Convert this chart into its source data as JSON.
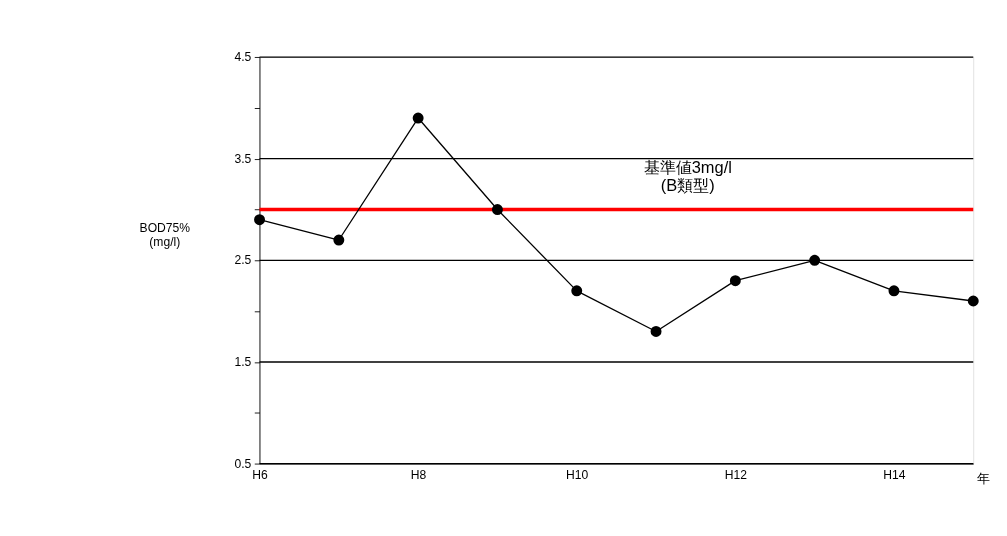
{
  "chart_data": {
    "type": "line",
    "categories": [
      "H6",
      null,
      "H8",
      null,
      "H10",
      null,
      "H12",
      null,
      "H14",
      null
    ],
    "series": [
      {
        "color": "#000000",
        "values": [
          2.9,
          2.7,
          3.9,
          3.0,
          2.2,
          1.8,
          2.3,
          2.5,
          2.2,
          2.1
        ]
      }
    ],
    "ylabel": "BOD75%\n(mg/l)",
    "xlabel": "年",
    "ylim": [
      0.5,
      4.5
    ],
    "yticks": [
      0.5,
      {
        "value": 1,
        "label": null
      },
      1.5,
      {
        "value": 2,
        "label": null
      },
      2.5,
      {
        "value": 3,
        "label": null
      },
      3.5,
      {
        "value": 4,
        "label": null
      },
      4.5
    ],
    "grid": "y",
    "marker": "circle",
    "line_style": "solid",
    "ref_lines": [
      {
        "axis": "y",
        "value": 3,
        "label": "基準値3mg/l\n(B類型)",
        "color": "#ff0000"
      }
    ]
  }
}
